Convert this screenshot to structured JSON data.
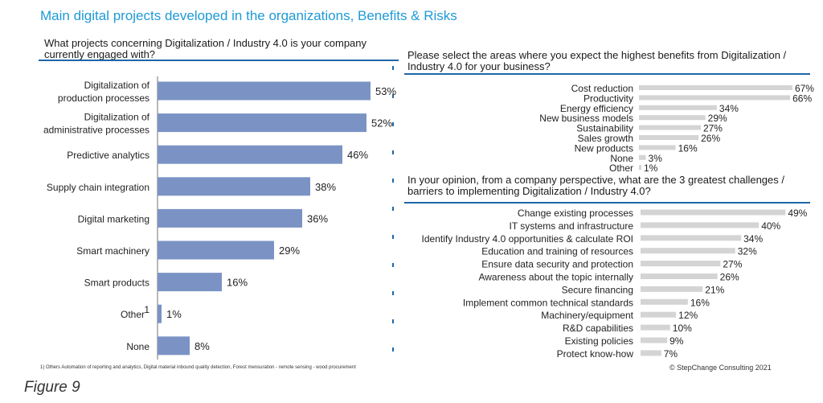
{
  "header": {
    "title": "Main digital projects developed in the organizations, Benefits & Risks"
  },
  "colors": {
    "title": "#1e9ad6",
    "left_bar": "#7b93c4",
    "right_bar": "#d4d4d4",
    "divider": "#1f67a8",
    "axis": "#888888"
  },
  "chart_data": [
    {
      "type": "bar",
      "orientation": "horizontal",
      "title": "What projects concerning Digitalization / Industry 4.0 is your company currently engaged with?",
      "categories": [
        "Digitalization of production processes",
        "Digitalization of administrative processes",
        "Predictive analytics",
        "Supply chain integration",
        "Digital marketing",
        "Smart machinery",
        "Smart products",
        "Other",
        "None"
      ],
      "category_lines": [
        [
          "Digitalization of",
          "production processes"
        ],
        [
          "Digitalization of",
          "administrative processes"
        ],
        [
          "Predictive analytics"
        ],
        [
          "Supply chain integration"
        ],
        [
          "Digital marketing"
        ],
        [
          "Smart machinery"
        ],
        [
          "Smart products"
        ],
        [
          "Other"
        ],
        [
          "None"
        ]
      ],
      "values": [
        53,
        52,
        46,
        38,
        36,
        29,
        16,
        1,
        8
      ],
      "value_labels": [
        "53%",
        "52%",
        "46%",
        "38%",
        "36%",
        "29%",
        "16%",
        "1%",
        "8%"
      ],
      "unit": "%",
      "xlim": [
        0,
        60
      ]
    },
    {
      "type": "bar",
      "orientation": "horizontal",
      "title": "Please select the areas where you expect the highest benefits from Digitalization / Industry 4.0 for your business?",
      "categories": [
        "Cost reduction",
        "Productivity",
        "Energy efficiency",
        "New business models",
        "Sustainability",
        "Sales growth",
        "New products",
        "None",
        "Other"
      ],
      "values": [
        67,
        66,
        34,
        29,
        27,
        26,
        16,
        3,
        1
      ],
      "value_labels": [
        "67%",
        "66%",
        "34%",
        "29%",
        "27%",
        "26%",
        "16%",
        "3%",
        "1%"
      ],
      "unit": "%",
      "xlim": [
        0,
        70
      ]
    },
    {
      "type": "bar",
      "orientation": "horizontal",
      "title": "In your opinion, from a company perspective, what are the 3 greatest challenges / barriers to implementing Digitalization / Industry 4.0?",
      "categories": [
        "Change existing processes",
        "IT systems and infrastructure",
        "Identify Industry 4.0 opportunities & calculate ROI",
        "Education and training of resources",
        "Ensure data security and protection",
        "Awareness about the topic internally",
        "Secure financing",
        "Implement common technical standards",
        "Machinery/equipment",
        "R&D capabilities",
        "Existing policies",
        "Protect know-how"
      ],
      "values": [
        49,
        40,
        34,
        32,
        27,
        26,
        21,
        16,
        12,
        10,
        9,
        7
      ],
      "value_labels": [
        "49%",
        "40%",
        "34%",
        "32%",
        "27%",
        "26%",
        "21%",
        "16%",
        "12%",
        "10%",
        "9%",
        "7%"
      ],
      "unit": "%",
      "xlim": [
        0,
        52
      ]
    }
  ],
  "left_chart": {
    "other_superscript": "1"
  },
  "footer": {
    "footnote": "1) Others Automation of reporting and analytics, Digital material inbound quality detection, Forest mensuration - remote sensing - wood procurement",
    "copyright": "© StepChange Consulting 2021",
    "figure_caption": "Figure 9"
  }
}
